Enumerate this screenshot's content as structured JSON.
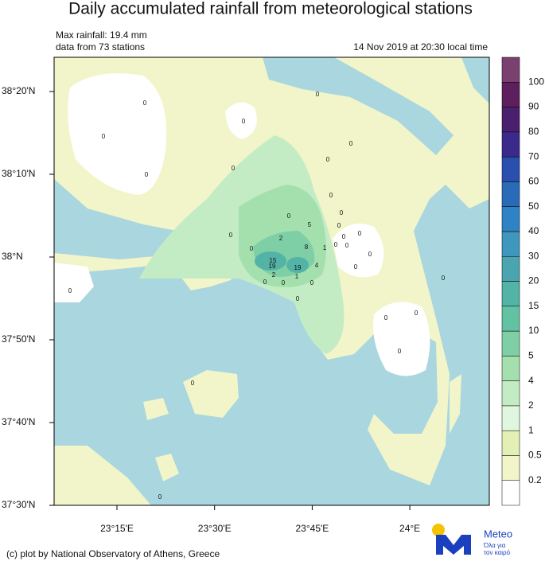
{
  "title": "Daily accumulated rainfall from meteorological stations",
  "info": {
    "max_rainfall": "Max rainfall: 19.4 mm",
    "stations_count": "data from 73 stations",
    "time": "14 Nov 2019 at 20:30 local time"
  },
  "lat_labels": [
    "38°20'N",
    "38°10'N",
    "38°N",
    "37°50'N",
    "37°40'N",
    "37°30'N"
  ],
  "lon_labels": [
    "23°15'E",
    "23°30'E",
    "23°45'E",
    "24°E"
  ],
  "colorbar": {
    "levels": [
      0.2,
      0.5,
      1,
      2,
      4,
      5,
      10,
      15,
      20,
      30,
      40,
      50,
      60,
      70,
      80,
      90,
      100
    ],
    "colors": [
      "#ffffff",
      "#f1f5c9",
      "#e3efb4",
      "#dff7df",
      "#c4ecc4",
      "#a3e0ae",
      "#7fcfa6",
      "#63c2a3",
      "#53b3a6",
      "#4aa5b0",
      "#3f97bd",
      "#2f82c3",
      "#2a6bb8",
      "#2a4fae",
      "#3b2a8c",
      "#4a1f6e",
      "#5e1f5e",
      "#7a4070"
    ]
  },
  "stations": [
    0,
    0,
    0,
    0,
    0,
    0,
    0,
    0,
    0,
    0,
    0,
    0,
    0,
    0,
    0,
    0,
    0,
    0,
    0,
    5,
    2,
    8,
    1,
    15,
    19,
    19,
    4,
    2,
    1,
    0,
    0,
    0,
    0,
    0,
    0,
    0,
    0,
    0,
    0,
    0,
    0
  ],
  "credit": "(c) plot by National Observatory of Athens, Greece",
  "logo": {
    "name": "Meteo",
    "tagline_1": "Όλα για",
    "tagline_2": "τον καιρό"
  }
}
